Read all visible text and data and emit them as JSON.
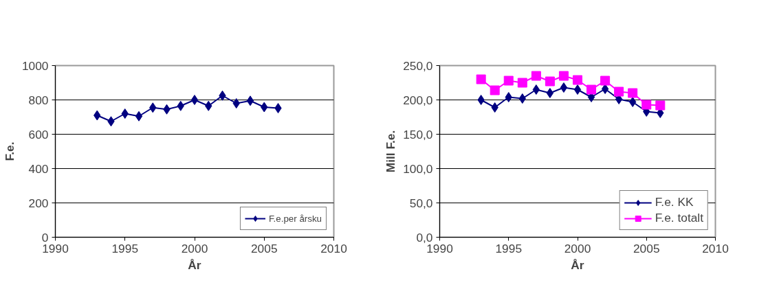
{
  "chart_data": [
    {
      "type": "line",
      "xlabel": "År",
      "ylabel": "F.e.",
      "x": [
        1993,
        1994,
        1995,
        1996,
        1997,
        1998,
        1999,
        2000,
        2001,
        2002,
        2003,
        2004,
        2005,
        2006
      ],
      "series": [
        {
          "name": "F.e.per årsku",
          "color": "#000080",
          "values": [
            710,
            675,
            720,
            705,
            755,
            745,
            765,
            800,
            765,
            825,
            780,
            795,
            758,
            752
          ]
        }
      ],
      "xlim": [
        1990,
        2010
      ],
      "xticks": [
        1990,
        1995,
        2000,
        2005,
        2010
      ],
      "ylim": [
        0,
        1000
      ],
      "yticks": [
        0,
        200,
        400,
        600,
        800,
        1000
      ],
      "grid": "y",
      "legend": "bottom right",
      "marker": "diamond",
      "line_style": "solid"
    },
    {
      "type": "line",
      "xlabel": "År",
      "ylabel": "Mill F.e.",
      "x": [
        1993,
        1994,
        1995,
        1996,
        1997,
        1998,
        1999,
        2000,
        2001,
        2002,
        2003,
        2004,
        2005,
        2006
      ],
      "series": [
        {
          "name": "F.e. KK",
          "color": "#000080",
          "marker": "diamond",
          "values": [
            200,
            189,
            204,
            202,
            215,
            210,
            218,
            215,
            204,
            216,
            201,
            197,
            183,
            181
          ]
        },
        {
          "name": "F.e. totalt",
          "color": "#ff00ff",
          "marker": "square",
          "values": [
            230,
            214,
            228,
            225,
            235,
            227,
            235,
            229,
            215,
            228,
            212,
            210,
            193,
            192
          ]
        }
      ],
      "xlim": [
        1990,
        2010
      ],
      "xticks": [
        1990,
        1995,
        2000,
        2005,
        2010
      ],
      "ylim": [
        0,
        250
      ],
      "yticks": [
        {
          "value": 0,
          "label": "0,0"
        },
        {
          "value": 50,
          "label": "50,0"
        },
        {
          "value": 100,
          "label": "100,0"
        },
        {
          "value": 150,
          "label": "150,0"
        },
        {
          "value": 200,
          "label": "200,0"
        },
        {
          "value": 250,
          "label": "250,0"
        }
      ],
      "grid": "y",
      "legend": "bottom right",
      "line_style": "solid"
    }
  ]
}
